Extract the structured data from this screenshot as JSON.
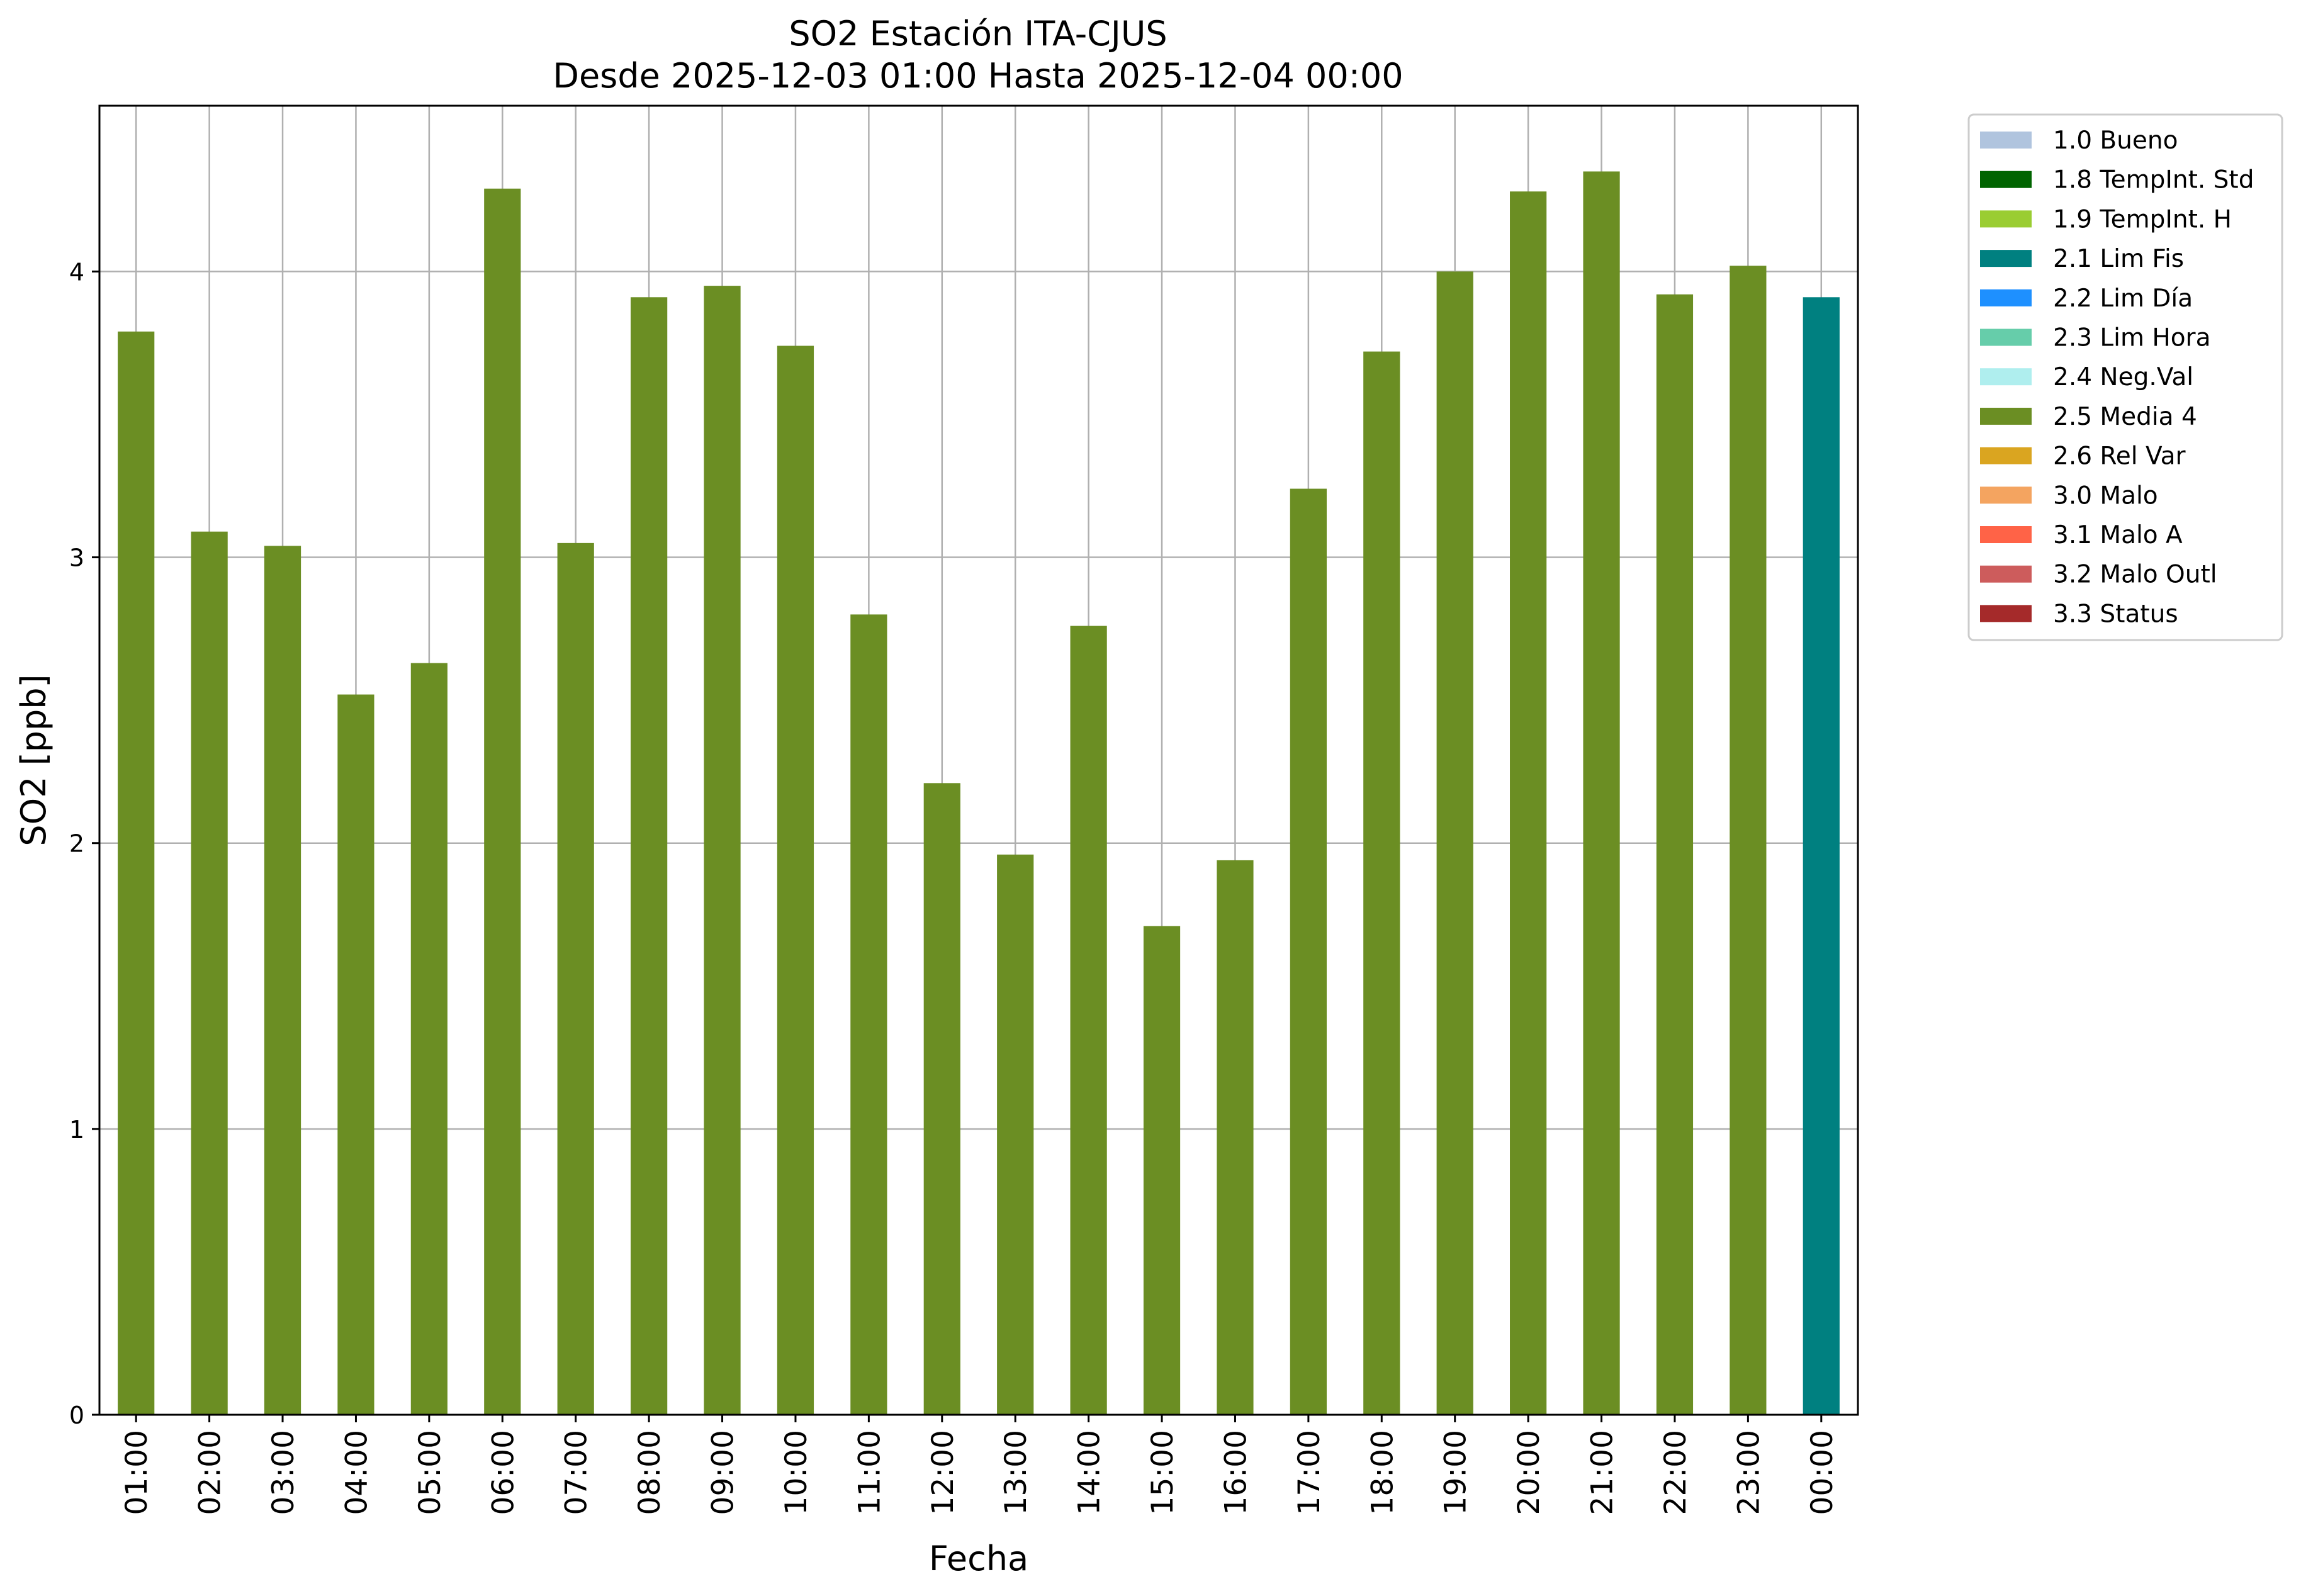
{
  "chart_data": {
    "type": "bar",
    "title": "SO2 Estación ITA-CJUS",
    "subtitle": "Desde 2025-12-03 01:00 Hasta 2025-12-04 00:00",
    "xlabel": "Fecha",
    "ylabel": "SO2 [ppb]",
    "ylim": [
      0,
      4.58
    ],
    "yticks": [
      0,
      1,
      2,
      3,
      4
    ],
    "grid": true,
    "legend_position": "outside-top-right",
    "categories": [
      "01:00",
      "02:00",
      "03:00",
      "04:00",
      "05:00",
      "06:00",
      "07:00",
      "08:00",
      "09:00",
      "10:00",
      "11:00",
      "12:00",
      "13:00",
      "14:00",
      "15:00",
      "16:00",
      "17:00",
      "18:00",
      "19:00",
      "20:00",
      "21:00",
      "22:00",
      "23:00",
      "00:00"
    ],
    "values": [
      3.79,
      3.09,
      3.04,
      2.52,
      2.63,
      4.29,
      3.05,
      3.91,
      3.95,
      3.74,
      2.8,
      2.21,
      1.96,
      2.76,
      1.71,
      1.94,
      3.24,
      3.72,
      4.0,
      4.28,
      4.35,
      3.92,
      4.02,
      3.91
    ],
    "flags": [
      "2.5 Media 4",
      "2.5 Media 4",
      "2.5 Media 4",
      "2.5 Media 4",
      "2.5 Media 4",
      "2.5 Media 4",
      "2.5 Media 4",
      "2.5 Media 4",
      "2.5 Media 4",
      "2.5 Media 4",
      "2.5 Media 4",
      "2.5 Media 4",
      "2.5 Media 4",
      "2.5 Media 4",
      "2.5 Media 4",
      "2.5 Media 4",
      "2.5 Media 4",
      "2.5 Media 4",
      "2.5 Media 4",
      "2.5 Media 4",
      "2.5 Media 4",
      "2.5 Media 4",
      "2.5 Media 4",
      "2.1 Lim Fis"
    ],
    "legend": [
      {
        "label": "1.0 Bueno",
        "color": "#b0c4de"
      },
      {
        "label": "1.8 TempInt. Std",
        "color": "#006400"
      },
      {
        "label": "1.9 TempInt. H",
        "color": "#9acd32"
      },
      {
        "label": "2.1 Lim Fis",
        "color": "#008080"
      },
      {
        "label": "2.2 Lim Día",
        "color": "#1e90ff"
      },
      {
        "label": "2.3 Lim Hora",
        "color": "#66cdaa"
      },
      {
        "label": "2.4 Neg.Val",
        "color": "#afeeee"
      },
      {
        "label": "2.5 Media 4",
        "color": "#6b8e23"
      },
      {
        "label": "2.6 Rel Var",
        "color": "#daa520"
      },
      {
        "label": "3.0 Malo",
        "color": "#f4a460"
      },
      {
        "label": "3.1 Malo A",
        "color": "#ff6347"
      },
      {
        "label": "3.2 Malo Outl",
        "color": "#cd5c5c"
      },
      {
        "label": "3.3 Status",
        "color": "#a52a2a"
      }
    ]
  }
}
